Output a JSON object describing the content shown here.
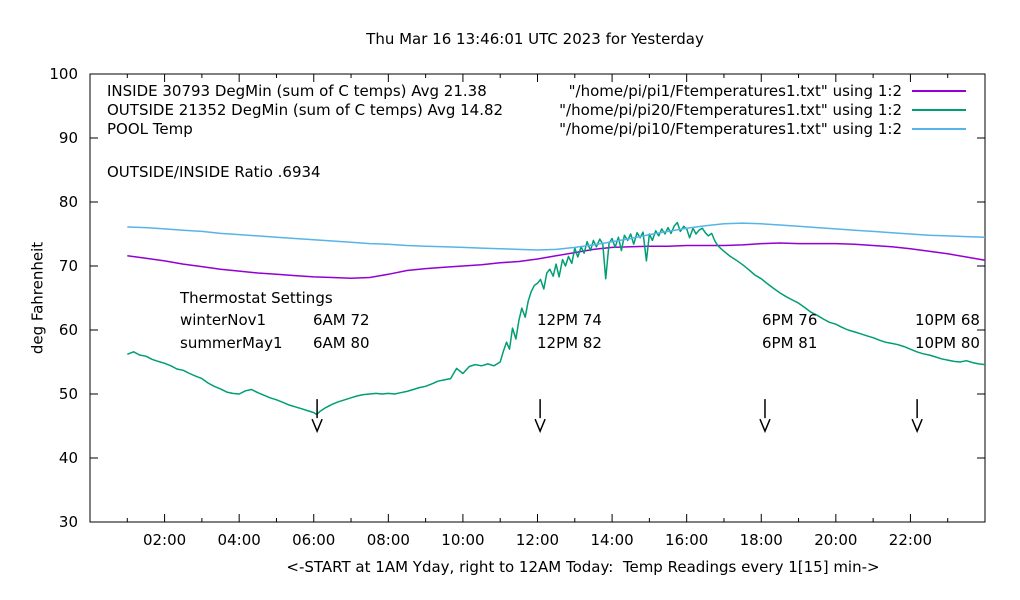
{
  "title": "Thu Mar 16 13:46:01 UTC 2023 for Yesterday",
  "ratio_text": "OUTSIDE/INSIDE Ratio .6934",
  "legend": {
    "rows": [
      {
        "label": "INSIDE 30793 DegMin (sum of C temps) Avg 21.38",
        "file": "\"/home/pi/pi1/Ftemperatures1.txt\" using 1:2",
        "color": "#9400D3"
      },
      {
        "label": "OUTSIDE 21352 DegMin (sum of C temps) Avg 14.82",
        "file": "\"/home/pi/pi20/Ftemperatures1.txt\" using 1:2",
        "color": "#009E73"
      },
      {
        "label": "POOL Temp",
        "file": "\"/home/pi/pi10/Ftemperatures1.txt\" using 1:2",
        "color": "#56B4E9"
      }
    ]
  },
  "thermostat": {
    "heading": "Thermostat Settings",
    "rows": [
      {
        "season": "winterNov1",
        "settings": [
          "6AM 72",
          "12PM 74",
          "6PM 76",
          "10PM 68"
        ]
      },
      {
        "season": "summerMay1",
        "settings": [
          "6AM 80",
          "12PM 82",
          "6PM 81",
          "10PM 80"
        ]
      }
    ]
  },
  "chart_data": {
    "type": "line",
    "title": "Thu Mar 16 13:46:01 UTC 2023 for Yesterday",
    "xlabel": "<-START at 1AM Yday, right to 12AM Today:  Temp Readings every 1[15] min->",
    "ylabel": "deg Fahrenheit",
    "xlim": [
      0,
      24
    ],
    "ylim": [
      30,
      100
    ],
    "grid": false,
    "legend_position": "top-inside",
    "y_ticks": [
      30,
      40,
      50,
      60,
      70,
      80,
      90,
      100
    ],
    "x_ticks": [
      {
        "value": 2,
        "label": "02:00"
      },
      {
        "value": 4,
        "label": "04:00"
      },
      {
        "value": 6,
        "label": "06:00"
      },
      {
        "value": 8,
        "label": "08:00"
      },
      {
        "value": 10,
        "label": "10:00"
      },
      {
        "value": 12,
        "label": "12:00"
      },
      {
        "value": 14,
        "label": "14:00"
      },
      {
        "value": 16,
        "label": "16:00"
      },
      {
        "value": 18,
        "label": "18:00"
      },
      {
        "value": 20,
        "label": "20:00"
      },
      {
        "value": 22,
        "label": "22:00"
      }
    ],
    "x_minor_ticks": [
      1,
      3,
      5,
      7,
      9,
      11,
      13,
      15,
      17,
      19,
      21,
      23
    ],
    "arrows": {
      "times": [
        6.09,
        12.07,
        18.1,
        22.18
      ],
      "tail_f": 49.2,
      "tip_f": 44.2
    },
    "series": [
      {
        "name": "INSIDE",
        "color": "#9400D3",
        "points": [
          [
            1,
            71.6
          ],
          [
            1.5,
            71.2
          ],
          [
            2,
            70.8
          ],
          [
            2.5,
            70.3
          ],
          [
            3,
            69.9
          ],
          [
            3.5,
            69.5
          ],
          [
            4,
            69.2
          ],
          [
            4.5,
            68.9
          ],
          [
            5,
            68.7
          ],
          [
            5.5,
            68.5
          ],
          [
            6,
            68.3
          ],
          [
            6.5,
            68.2
          ],
          [
            7,
            68.1
          ],
          [
            7.5,
            68.2
          ],
          [
            8,
            68.7
          ],
          [
            8.5,
            69.3
          ],
          [
            9,
            69.6
          ],
          [
            9.5,
            69.8
          ],
          [
            10,
            70.0
          ],
          [
            10.5,
            70.2
          ],
          [
            11,
            70.5
          ],
          [
            11.5,
            70.7
          ],
          [
            12,
            71.1
          ],
          [
            12.5,
            71.6
          ],
          [
            13,
            72.1
          ],
          [
            13.5,
            72.6
          ],
          [
            14,
            72.9
          ],
          [
            14.5,
            73.0
          ],
          [
            15,
            73.1
          ],
          [
            15.5,
            73.1
          ],
          [
            16,
            73.2
          ],
          [
            16.5,
            73.2
          ],
          [
            17,
            73.2
          ],
          [
            17.5,
            73.3
          ],
          [
            18,
            73.5
          ],
          [
            18.5,
            73.6
          ],
          [
            19,
            73.5
          ],
          [
            19.5,
            73.5
          ],
          [
            20,
            73.5
          ],
          [
            20.5,
            73.4
          ],
          [
            21,
            73.2
          ],
          [
            21.5,
            73.0
          ],
          [
            22,
            72.7
          ],
          [
            22.5,
            72.3
          ],
          [
            23,
            71.9
          ],
          [
            23.5,
            71.4
          ],
          [
            24,
            70.9
          ]
        ]
      },
      {
        "name": "OUTSIDE",
        "color": "#009E73",
        "points": [
          [
            1,
            56.2
          ],
          [
            1.17,
            56.6
          ],
          [
            1.33,
            56.1
          ],
          [
            1.5,
            55.9
          ],
          [
            1.67,
            55.4
          ],
          [
            1.83,
            55.1
          ],
          [
            2,
            54.8
          ],
          [
            2.17,
            54.4
          ],
          [
            2.33,
            53.9
          ],
          [
            2.5,
            53.7
          ],
          [
            2.67,
            53.2
          ],
          [
            2.83,
            52.8
          ],
          [
            3,
            52.4
          ],
          [
            3.17,
            51.7
          ],
          [
            3.33,
            51.2
          ],
          [
            3.5,
            50.8
          ],
          [
            3.67,
            50.3
          ],
          [
            3.83,
            50.1
          ],
          [
            4,
            50.0
          ],
          [
            4.17,
            50.5
          ],
          [
            4.33,
            50.7
          ],
          [
            4.5,
            50.2
          ],
          [
            4.67,
            49.8
          ],
          [
            4.83,
            49.4
          ],
          [
            5,
            49.1
          ],
          [
            5.17,
            48.7
          ],
          [
            5.33,
            48.3
          ],
          [
            5.5,
            48.0
          ],
          [
            5.67,
            47.7
          ],
          [
            5.83,
            47.4
          ],
          [
            6,
            47.1
          ],
          [
            6.08,
            46.8
          ],
          [
            6.17,
            47.3
          ],
          [
            6.33,
            47.9
          ],
          [
            6.5,
            48.4
          ],
          [
            6.67,
            48.8
          ],
          [
            6.83,
            49.1
          ],
          [
            7,
            49.4
          ],
          [
            7.17,
            49.7
          ],
          [
            7.33,
            49.9
          ],
          [
            7.5,
            50.0
          ],
          [
            7.67,
            50.1
          ],
          [
            7.83,
            50.0
          ],
          [
            8,
            50.1
          ],
          [
            8.17,
            50.0
          ],
          [
            8.33,
            50.2
          ],
          [
            8.5,
            50.4
          ],
          [
            8.67,
            50.7
          ],
          [
            8.83,
            51.0
          ],
          [
            9,
            51.2
          ],
          [
            9.17,
            51.6
          ],
          [
            9.33,
            52.0
          ],
          [
            9.5,
            52.2
          ],
          [
            9.67,
            52.4
          ],
          [
            9.83,
            54.0
          ],
          [
            10,
            53.2
          ],
          [
            10.17,
            54.3
          ],
          [
            10.33,
            54.6
          ],
          [
            10.5,
            54.4
          ],
          [
            10.67,
            54.7
          ],
          [
            10.83,
            54.4
          ],
          [
            11,
            55.0
          ],
          [
            11.08,
            56.6
          ],
          [
            11.17,
            58.1
          ],
          [
            11.25,
            57.0
          ],
          [
            11.33,
            60.3
          ],
          [
            11.42,
            58.6
          ],
          [
            11.5,
            61.5
          ],
          [
            11.58,
            63.4
          ],
          [
            11.67,
            62.0
          ],
          [
            11.75,
            64.5
          ],
          [
            11.83,
            66.0
          ],
          [
            11.92,
            67.0
          ],
          [
            12,
            67.3
          ],
          [
            12.08,
            67.9
          ],
          [
            12.17,
            66.4
          ],
          [
            12.25,
            68.9
          ],
          [
            12.33,
            69.5
          ],
          [
            12.42,
            68.4
          ],
          [
            12.5,
            70.3
          ],
          [
            12.58,
            68.3
          ],
          [
            12.67,
            71.0
          ],
          [
            12.75,
            70.0
          ],
          [
            12.83,
            71.5
          ],
          [
            12.92,
            70.4
          ],
          [
            13,
            72.8
          ],
          [
            13.08,
            71.4
          ],
          [
            13.17,
            73.0
          ],
          [
            13.25,
            72.0
          ],
          [
            13.33,
            73.8
          ],
          [
            13.42,
            72.4
          ],
          [
            13.5,
            74.0
          ],
          [
            13.58,
            73.0
          ],
          [
            13.67,
            74.2
          ],
          [
            13.75,
            73.4
          ],
          [
            13.83,
            68.0
          ],
          [
            13.92,
            73.6
          ],
          [
            14,
            74.3
          ],
          [
            14.08,
            72.9
          ],
          [
            14.17,
            74.5
          ],
          [
            14.25,
            72.4
          ],
          [
            14.33,
            74.8
          ],
          [
            14.42,
            74.0
          ],
          [
            14.5,
            75.0
          ],
          [
            14.58,
            73.4
          ],
          [
            14.67,
            75.2
          ],
          [
            14.75,
            74.4
          ],
          [
            14.83,
            75.3
          ],
          [
            14.92,
            70.8
          ],
          [
            15,
            75.0
          ],
          [
            15.08,
            74.0
          ],
          [
            15.17,
            75.5
          ],
          [
            15.25,
            74.7
          ],
          [
            15.33,
            75.8
          ],
          [
            15.42,
            75.0
          ],
          [
            15.5,
            76.0
          ],
          [
            15.58,
            75.1
          ],
          [
            15.67,
            76.3
          ],
          [
            15.75,
            76.8
          ],
          [
            15.83,
            75.4
          ],
          [
            15.92,
            76.2
          ],
          [
            16,
            75.8
          ],
          [
            16.08,
            74.4
          ],
          [
            16.17,
            75.9
          ],
          [
            16.25,
            75.0
          ],
          [
            16.33,
            75.6
          ],
          [
            16.42,
            75.9
          ],
          [
            16.5,
            75.2
          ],
          [
            16.58,
            74.7
          ],
          [
            16.67,
            75.1
          ],
          [
            16.75,
            74.0
          ],
          [
            16.83,
            73.2
          ],
          [
            16.92,
            72.7
          ],
          [
            17,
            72.3
          ],
          [
            17.17,
            71.5
          ],
          [
            17.33,
            70.9
          ],
          [
            17.5,
            70.2
          ],
          [
            17.67,
            69.4
          ],
          [
            17.83,
            68.6
          ],
          [
            18,
            68.0
          ],
          [
            18.17,
            67.2
          ],
          [
            18.33,
            66.5
          ],
          [
            18.5,
            65.8
          ],
          [
            18.67,
            65.2
          ],
          [
            18.83,
            64.7
          ],
          [
            19,
            64.2
          ],
          [
            19.17,
            63.5
          ],
          [
            19.33,
            62.8
          ],
          [
            19.5,
            62.3
          ],
          [
            19.67,
            61.7
          ],
          [
            19.83,
            61.2
          ],
          [
            20,
            60.9
          ],
          [
            20.17,
            60.4
          ],
          [
            20.33,
            60.0
          ],
          [
            20.5,
            59.7
          ],
          [
            20.67,
            59.4
          ],
          [
            20.83,
            59.1
          ],
          [
            21,
            58.8
          ],
          [
            21.17,
            58.4
          ],
          [
            21.33,
            58.1
          ],
          [
            21.5,
            57.9
          ],
          [
            21.67,
            57.7
          ],
          [
            21.83,
            57.4
          ],
          [
            22,
            57.0
          ],
          [
            22.17,
            56.6
          ],
          [
            22.33,
            56.3
          ],
          [
            22.5,
            56.1
          ],
          [
            22.67,
            55.8
          ],
          [
            22.83,
            55.5
          ],
          [
            23,
            55.3
          ],
          [
            23.17,
            55.1
          ],
          [
            23.33,
            55.0
          ],
          [
            23.5,
            55.2
          ],
          [
            23.67,
            54.9
          ],
          [
            23.83,
            54.7
          ],
          [
            24,
            54.6
          ]
        ]
      },
      {
        "name": "POOL",
        "color": "#56B4E9",
        "points": [
          [
            1,
            76.1
          ],
          [
            1.5,
            76.0
          ],
          [
            2,
            75.8
          ],
          [
            2.5,
            75.6
          ],
          [
            3,
            75.4
          ],
          [
            3.5,
            75.1
          ],
          [
            4,
            74.9
          ],
          [
            4.5,
            74.7
          ],
          [
            5,
            74.5
          ],
          [
            5.5,
            74.3
          ],
          [
            6,
            74.1
          ],
          [
            6.5,
            73.9
          ],
          [
            7,
            73.7
          ],
          [
            7.5,
            73.5
          ],
          [
            8,
            73.4
          ],
          [
            8.5,
            73.2
          ],
          [
            9,
            73.1
          ],
          [
            9.5,
            73.0
          ],
          [
            10,
            72.9
          ],
          [
            10.5,
            72.8
          ],
          [
            11,
            72.7
          ],
          [
            11.5,
            72.6
          ],
          [
            12,
            72.5
          ],
          [
            12.5,
            72.6
          ],
          [
            13,
            72.9
          ],
          [
            13.5,
            73.3
          ],
          [
            14,
            73.8
          ],
          [
            14.5,
            74.3
          ],
          [
            15,
            74.9
          ],
          [
            15.5,
            75.4
          ],
          [
            16,
            75.9
          ],
          [
            16.5,
            76.3
          ],
          [
            17,
            76.6
          ],
          [
            17.5,
            76.7
          ],
          [
            18,
            76.6
          ],
          [
            18.5,
            76.4
          ],
          [
            19,
            76.2
          ],
          [
            19.5,
            76.0
          ],
          [
            20,
            75.8
          ],
          [
            20.5,
            75.6
          ],
          [
            21,
            75.4
          ],
          [
            21.5,
            75.2
          ],
          [
            22,
            75.0
          ],
          [
            22.5,
            74.8
          ],
          [
            23,
            74.7
          ],
          [
            23.5,
            74.6
          ],
          [
            24,
            74.5
          ]
        ]
      }
    ]
  }
}
